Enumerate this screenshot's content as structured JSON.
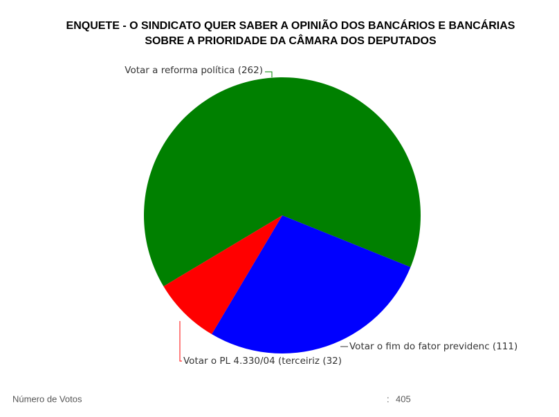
{
  "chart_data": {
    "type": "pie",
    "title": [
      "ENQUETE - O SINDICATO QUER SABER A OPINIÃO DOS BANCÁRIOS E BANCÁRIAS",
      "SOBRE A PRIORIDADE DA CÂMARA DOS DEPUTADOS"
    ],
    "categories": [
      "Votar a reforma política",
      "Votar o fim do fator previdenc",
      "Votar o PL 4.330/04 (terceiriz"
    ],
    "values": [
      262,
      111,
      32
    ],
    "value_labels": [
      "(262)",
      "(111)",
      "(32)"
    ],
    "colors": [
      "#008000",
      "#0000ff",
      "#ff0000"
    ]
  },
  "footer": {
    "label": "Número de Votos",
    "separator": ":",
    "total": 405
  }
}
